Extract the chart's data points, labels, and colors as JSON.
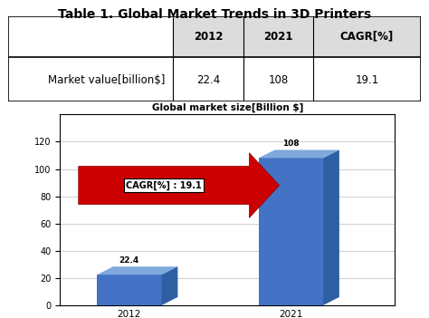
{
  "title": "Table 1. Global Market Trends in 3D Printers",
  "table_headers": [
    "",
    "2012",
    "2021",
    "CAGR[%]"
  ],
  "table_row": [
    "Market value[billion$]",
    "22.4",
    "108",
    "19.1"
  ],
  "chart_title": "Global market size[Billion $]",
  "years": [
    "2012",
    "2021"
  ],
  "values": [
    22.4,
    108
  ],
  "bar_color_front": "#4472C4",
  "bar_color_top": "#7FA8DC",
  "bar_color_side": "#2E5FA3",
  "arrow_color": "#CC0000",
  "cagr_label": "CAGR[%] : 19.1",
  "ylim": [
    0,
    140
  ],
  "yticks": [
    0,
    20,
    40,
    60,
    80,
    100,
    120
  ],
  "bg_color": "#FFFFFF",
  "title_fontsize": 10,
  "table_fontsize": 8.5,
  "chart_title_fontsize": 7.5
}
